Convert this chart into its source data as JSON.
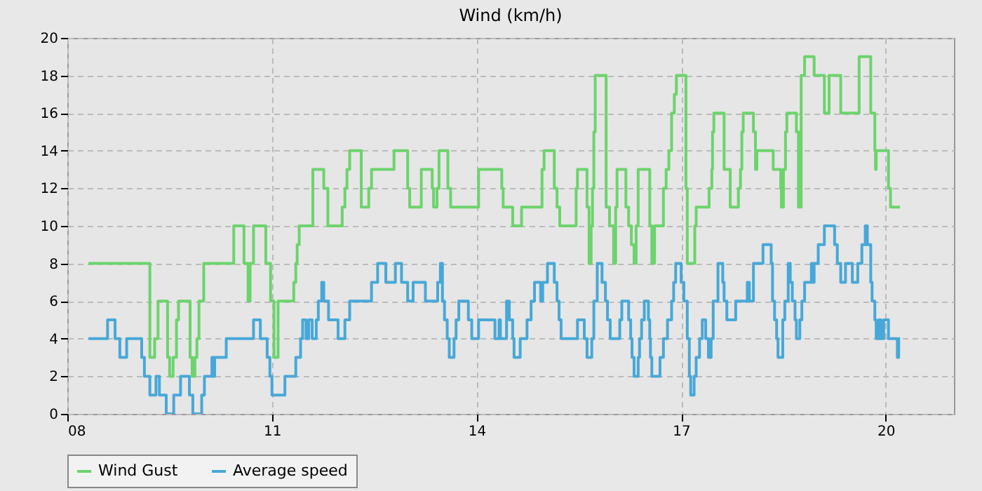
{
  "chart_data": {
    "type": "step",
    "title": "Wind (km/h)",
    "xlim": [
      8,
      21
    ],
    "ylim": [
      0,
      20
    ],
    "xticks": [
      {
        "value": 8,
        "label": "08"
      },
      {
        "value": 11,
        "label": "11"
      },
      {
        "value": 14,
        "label": "14"
      },
      {
        "value": 17,
        "label": "17"
      },
      {
        "value": 20,
        "label": "20"
      }
    ],
    "yticks": [
      0,
      2,
      4,
      6,
      8,
      10,
      12,
      14,
      16,
      18,
      20
    ],
    "grid": true,
    "legend": "bottom",
    "series": [
      {
        "name": "Wind Gust",
        "color": "#6cd46c",
        "x": [
          8.31,
          9.21,
          9.28,
          9.33,
          9.47,
          9.5,
          9.55,
          9.6,
          9.63,
          9.8,
          9.83,
          9.87,
          9.9,
          9.93,
          10.0,
          10.44,
          10.59,
          10.65,
          10.68,
          10.73,
          10.91,
          10.98,
          11.03,
          11.09,
          11.32,
          11.35,
          11.37,
          11.4,
          11.6,
          11.76,
          11.82,
          12.03,
          12.07,
          12.1,
          12.14,
          12.31,
          12.42,
          12.46,
          12.79,
          12.99,
          13.02,
          13.19,
          13.35,
          13.37,
          13.42,
          13.45,
          13.58,
          13.62,
          14.03,
          14.37,
          14.39,
          14.53,
          14.66,
          14.96,
          14.99,
          15.14,
          15.18,
          15.22,
          15.46,
          15.48,
          15.62,
          15.65,
          15.68,
          15.7,
          15.72,
          15.74,
          15.9,
          15.95,
          16.01,
          16.04,
          16.06,
          16.19,
          16.23,
          16.27,
          16.31,
          16.34,
          16.37,
          16.54,
          16.57,
          16.61,
          16.74,
          16.78,
          16.82,
          16.86,
          16.9,
          16.93,
          17.07,
          17.09,
          17.2,
          17.22,
          17.41,
          17.45,
          17.46,
          17.48,
          17.63,
          17.72,
          17.84,
          17.87,
          17.89,
          17.91,
          18.06,
          18.09,
          18.11,
          18.35,
          18.46,
          18.47,
          18.5,
          18.53,
          18.55,
          18.69,
          18.72,
          18.76,
          18.81,
          18.95,
          19.1,
          19.17,
          19.34,
          19.61,
          19.78,
          19.84,
          19.85,
          19.86,
          20.04,
          20.07,
          20.21
        ],
        "values": [
          8,
          3,
          4,
          6,
          3,
          2,
          3,
          5,
          6,
          3,
          2,
          3,
          4,
          6,
          8,
          10,
          8,
          6,
          8,
          10,
          8,
          6,
          3,
          6,
          7,
          8,
          9,
          10,
          13,
          12,
          10,
          11,
          12,
          13,
          14,
          11,
          12,
          13,
          14,
          12,
          11,
          13,
          12,
          11,
          12,
          14,
          12,
          11,
          13,
          12,
          11,
          10,
          11,
          13,
          14,
          12,
          11,
          10,
          12,
          13,
          11,
          8,
          10,
          12,
          15,
          18,
          11,
          10,
          8,
          11,
          13,
          11,
          10,
          9,
          8,
          10,
          13,
          10,
          8,
          10,
          12,
          13,
          14,
          16,
          17,
          18,
          12,
          8,
          10,
          11,
          12,
          13,
          15,
          16,
          13,
          11,
          12,
          13,
          15,
          16,
          15,
          13,
          14,
          13,
          12,
          11,
          13,
          15,
          16,
          15,
          11,
          18,
          19,
          18,
          16,
          18,
          16,
          19,
          16,
          14,
          13,
          14,
          12,
          11,
          11
        ]
      },
      {
        "name": "Average speed",
        "color": "#47a8d8",
        "x": [
          8.31,
          8.59,
          8.7,
          8.77,
          8.87,
          9.09,
          9.13,
          9.21,
          9.3,
          9.35,
          9.45,
          9.56,
          9.66,
          9.79,
          9.84,
          9.97,
          10.01,
          10.12,
          10.14,
          10.16,
          10.33,
          10.73,
          10.83,
          10.93,
          10.97,
          11.0,
          11.19,
          11.35,
          11.38,
          11.42,
          11.45,
          11.5,
          11.54,
          11.59,
          11.65,
          11.68,
          11.73,
          11.76,
          11.83,
          11.97,
          12.07,
          12.14,
          12.46,
          12.55,
          12.67,
          12.81,
          12.9,
          12.99,
          13.07,
          13.25,
          13.43,
          13.47,
          13.5,
          13.53,
          13.57,
          13.6,
          13.67,
          13.7,
          13.74,
          13.88,
          13.93,
          14.03,
          14.27,
          14.33,
          14.35,
          14.44,
          14.48,
          14.53,
          14.55,
          14.64,
          14.74,
          14.8,
          14.85,
          14.94,
          14.97,
          15.04,
          15.14,
          15.18,
          15.21,
          15.24,
          15.48,
          15.58,
          15.62,
          15.69,
          15.72,
          15.77,
          15.84,
          15.89,
          15.92,
          15.96,
          16.1,
          16.13,
          16.23,
          16.26,
          16.28,
          16.31,
          16.37,
          16.39,
          16.42,
          16.46,
          16.52,
          16.54,
          16.55,
          16.57,
          16.69,
          16.74,
          16.8,
          16.86,
          16.89,
          16.92,
          17.0,
          17.04,
          17.09,
          17.12,
          17.14,
          17.19,
          17.22,
          17.27,
          17.31,
          17.36,
          17.4,
          17.44,
          17.47,
          17.54,
          17.61,
          17.63,
          17.67,
          17.8,
          17.97,
          18.0,
          18.06,
          18.2,
          18.32,
          18.34,
          18.37,
          18.4,
          18.42,
          18.49,
          18.52,
          18.57,
          18.6,
          18.63,
          18.67,
          18.69,
          18.74,
          18.77,
          18.81,
          18.91,
          18.93,
          18.95,
          19.01,
          19.1,
          19.25,
          19.29,
          19.34,
          19.41,
          19.51,
          19.59,
          19.65,
          19.7,
          19.73,
          19.78,
          19.8,
          19.84,
          19.86,
          19.9,
          19.93,
          19.97,
          20.04,
          20.17,
          20.19,
          20.21
        ],
        "values": [
          4,
          5,
          4,
          3,
          4,
          3,
          2,
          1,
          2,
          1,
          0,
          1,
          2,
          1,
          0,
          1,
          2,
          3,
          2,
          3,
          4,
          5,
          4,
          3,
          2,
          1,
          2,
          3,
          3,
          4,
          5,
          4,
          5,
          4,
          5,
          6,
          7,
          6,
          5,
          4,
          5,
          6,
          7,
          8,
          7,
          8,
          7,
          6,
          7,
          6,
          7,
          8,
          6,
          5,
          4,
          3,
          4,
          5,
          6,
          5,
          4,
          5,
          4,
          5,
          4,
          6,
          5,
          4,
          3,
          4,
          5,
          6,
          7,
          6,
          7,
          8,
          7,
          6,
          5,
          4,
          5,
          4,
          3,
          4,
          6,
          8,
          7,
          6,
          5,
          4,
          5,
          6,
          5,
          4,
          3,
          2,
          3,
          4,
          5,
          6,
          5,
          4,
          3,
          2,
          3,
          4,
          5,
          6,
          7,
          8,
          7,
          6,
          4,
          2,
          1,
          2,
          3,
          4,
          5,
          4,
          3,
          4,
          6,
          8,
          7,
          6,
          5,
          6,
          7,
          6,
          8,
          9,
          8,
          6,
          5,
          4,
          3,
          5,
          6,
          8,
          7,
          6,
          5,
          4,
          5,
          6,
          7,
          8,
          7,
          8,
          9,
          10,
          9,
          8,
          7,
          8,
          7,
          8,
          9,
          10,
          9,
          7,
          6,
          5,
          4,
          5,
          4,
          5,
          4,
          3,
          4,
          4
        ]
      }
    ]
  }
}
